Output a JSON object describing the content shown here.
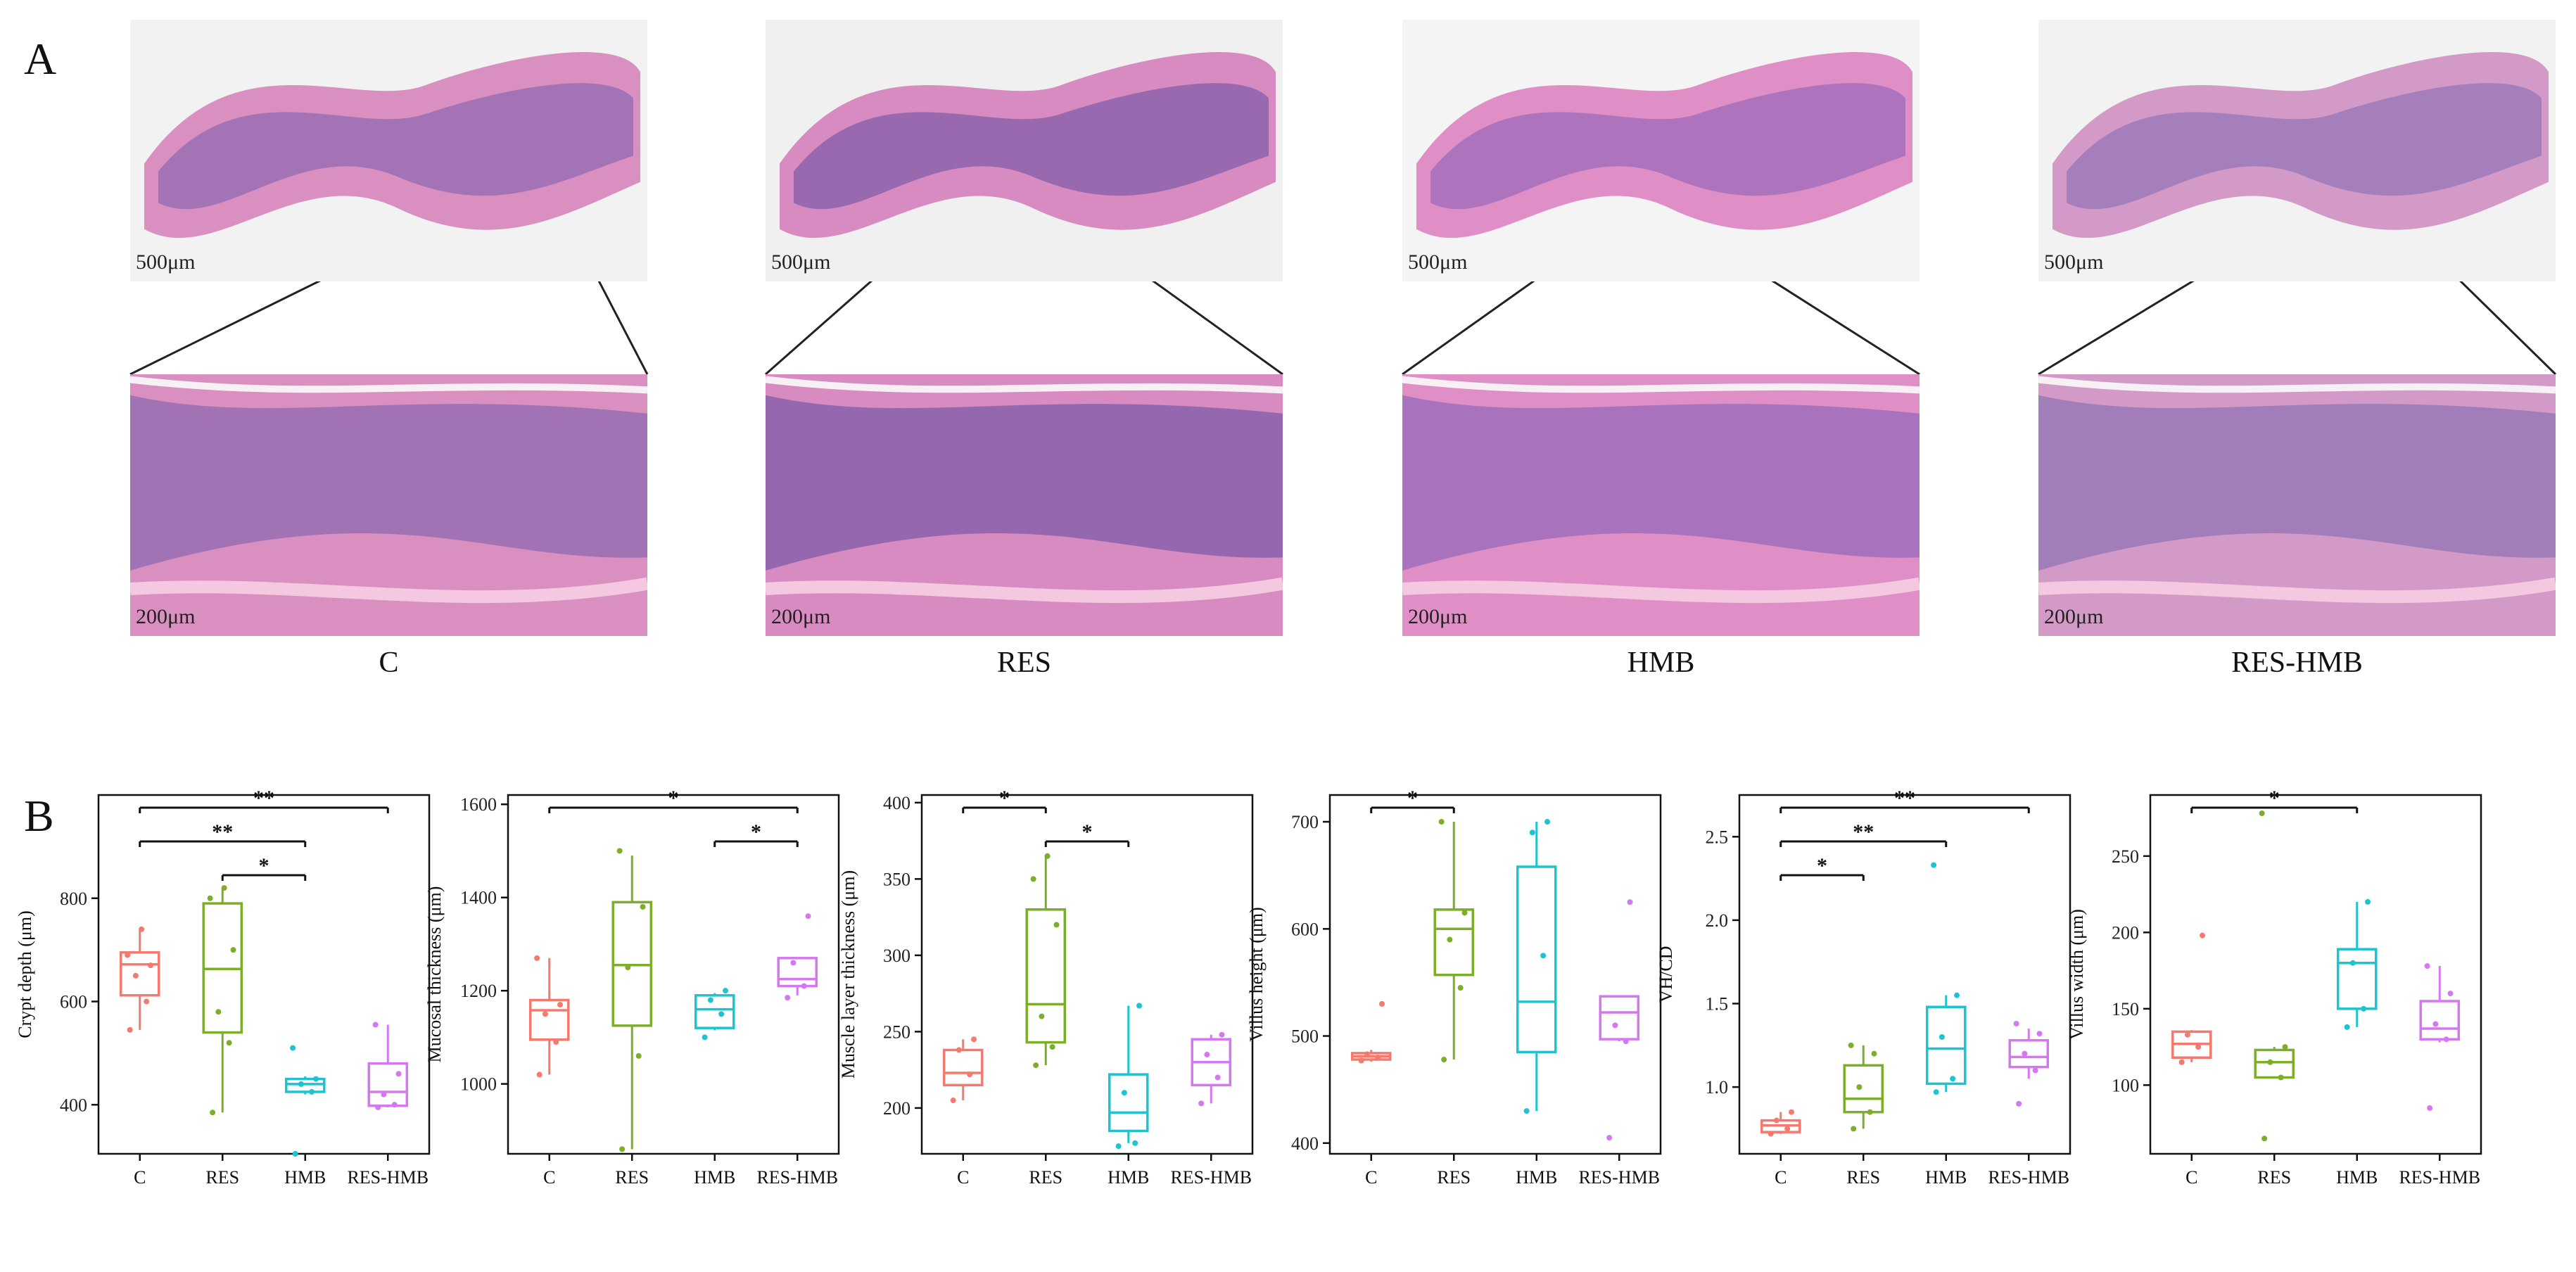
{
  "panel_a": {
    "label": "A",
    "overview_scale": "500μm",
    "zoom_scale": "200μm",
    "groups": [
      {
        "name": "C",
        "tissue": "#d98fc0",
        "lumen": "#f3f2f2",
        "mucosa": "#9a6fb3"
      },
      {
        "name": "RES",
        "tissue": "#d78bc0",
        "lumen": "#f1f0f0",
        "mucosa": "#8e63ad"
      },
      {
        "name": "HMB",
        "tissue": "#e08fc6",
        "lumen": "#f4f4f4",
        "mucosa": "#a36fba"
      },
      {
        "name": "RES-HMB",
        "tissue": "#d49ac7",
        "lumen": "#f2f2f2",
        "mucosa": "#9b7ab8"
      }
    ]
  },
  "panel_b": {
    "label": "B"
  },
  "chart_data": [
    {
      "type": "boxplot",
      "ylabel": "Crypt depth (μm)",
      "categories": [
        "C",
        "RES",
        "HMB",
        "RES-HMB"
      ],
      "yticks": [
        400,
        600,
        800
      ],
      "ylim": [
        305,
        1000
      ],
      "boxes": [
        {
          "group": "C",
          "min": 545,
          "q1": 612,
          "median": 672,
          "q3": 695,
          "max": 740,
          "points": [
            545,
            600,
            650,
            670,
            690,
            740
          ]
        },
        {
          "group": "RES",
          "min": 385,
          "q1": 540,
          "median": 663,
          "q3": 790,
          "max": 820,
          "points": [
            385,
            520,
            580,
            700,
            800,
            820
          ]
        },
        {
          "group": "HMB",
          "min": 420,
          "q1": 425,
          "median": 440,
          "q3": 450,
          "max": 455,
          "points": [
            305,
            425,
            440,
            450,
            510
          ]
        },
        {
          "group": "RES-HMB",
          "min": 395,
          "q1": 398,
          "median": 425,
          "q3": 480,
          "max": 555,
          "points": [
            395,
            400,
            420,
            460,
            555
          ]
        }
      ],
      "significance": [
        {
          "from": "C",
          "to": "RES-HMB",
          "label": "**"
        },
        {
          "from": "C",
          "to": "HMB",
          "label": "**"
        },
        {
          "from": "RES",
          "to": "HMB",
          "label": "*"
        }
      ],
      "color_map": {
        "C": "#f4796f",
        "RES": "#7cae2a",
        "HMB": "#1ec3cf",
        "RES-HMB": "#d677f2"
      }
    },
    {
      "type": "boxplot",
      "ylabel": "Mucosal thickness (μm)",
      "categories": [
        "C",
        "RES",
        "HMB",
        "RES-HMB"
      ],
      "yticks": [
        1000,
        1200,
        1400,
        1600
      ],
      "ylim": [
        850,
        1620
      ],
      "boxes": [
        {
          "group": "C",
          "min": 1020,
          "q1": 1095,
          "median": 1158,
          "q3": 1180,
          "max": 1270,
          "points": [
            1020,
            1090,
            1150,
            1170,
            1270
          ]
        },
        {
          "group": "RES",
          "min": 860,
          "q1": 1125,
          "median": 1255,
          "q3": 1390,
          "max": 1490,
          "points": [
            860,
            1060,
            1250,
            1380,
            1500
          ]
        },
        {
          "group": "HMB",
          "min": 1115,
          "q1": 1120,
          "median": 1160,
          "q3": 1190,
          "max": 1195,
          "points": [
            1100,
            1150,
            1180,
            1200
          ]
        },
        {
          "group": "RES-HMB",
          "min": 1190,
          "q1": 1210,
          "median": 1225,
          "q3": 1270,
          "max": 1270,
          "points": [
            1185,
            1210,
            1260,
            1360
          ]
        }
      ],
      "significance": [
        {
          "from": "C",
          "to": "RES-HMB",
          "label": "*"
        },
        {
          "from": "HMB",
          "to": "RES-HMB",
          "label": "*"
        }
      ],
      "color_map": {
        "C": "#f4796f",
        "RES": "#7cae2a",
        "HMB": "#1ec3cf",
        "RES-HMB": "#d677f2"
      }
    },
    {
      "type": "boxplot",
      "ylabel": "Muscle layer thickness (μm)",
      "categories": [
        "C",
        "RES",
        "HMB",
        "RES-HMB"
      ],
      "yticks": [
        200,
        250,
        300,
        350,
        400
      ],
      "ylim": [
        170,
        405
      ],
      "boxes": [
        {
          "group": "C",
          "min": 205,
          "q1": 215,
          "median": 223,
          "q3": 238,
          "max": 245,
          "points": [
            205,
            222,
            238,
            245
          ]
        },
        {
          "group": "RES",
          "min": 228,
          "q1": 243,
          "median": 268,
          "q3": 330,
          "max": 365,
          "points": [
            228,
            240,
            260,
            320,
            350,
            365
          ]
        },
        {
          "group": "HMB",
          "min": 177,
          "q1": 185,
          "median": 197,
          "q3": 222,
          "max": 267,
          "points": [
            175,
            177,
            210,
            267
          ]
        },
        {
          "group": "RES-HMB",
          "min": 203,
          "q1": 215,
          "median": 230,
          "q3": 245,
          "max": 248,
          "points": [
            203,
            220,
            235,
            248
          ]
        }
      ],
      "significance": [
        {
          "from": "C",
          "to": "RES",
          "label": "*"
        },
        {
          "from": "RES",
          "to": "HMB",
          "label": "*"
        }
      ],
      "color_map": {
        "C": "#f4796f",
        "RES": "#7cae2a",
        "HMB": "#1ec3cf",
        "RES-HMB": "#d677f2"
      }
    },
    {
      "type": "boxplot",
      "ylabel": "Villus height (μm)",
      "categories": [
        "C",
        "RES",
        "HMB",
        "RES-HMB"
      ],
      "yticks": [
        400,
        500,
        600,
        700
      ],
      "ylim": [
        390,
        725
      ],
      "boxes": [
        {
          "group": "C",
          "min": 476,
          "q1": 478,
          "median": 481,
          "q3": 484,
          "max": 487,
          "points": [
            477,
            480,
            483,
            530
          ]
        },
        {
          "group": "RES",
          "min": 478,
          "q1": 557,
          "median": 600,
          "q3": 618,
          "max": 700,
          "points": [
            478,
            545,
            590,
            615,
            700
          ]
        },
        {
          "group": "HMB",
          "min": 430,
          "q1": 485,
          "median": 532,
          "q3": 658,
          "max": 700,
          "points": [
            430,
            575,
            690,
            700
          ]
        },
        {
          "group": "RES-HMB",
          "min": 495,
          "q1": 497,
          "median": 522,
          "q3": 537,
          "max": 537,
          "points": [
            405,
            495,
            510,
            625
          ]
        }
      ],
      "significance": [
        {
          "from": "C",
          "to": "RES",
          "label": "*"
        }
      ],
      "color_map": {
        "C": "#f4796f",
        "RES": "#7cae2a",
        "HMB": "#1ec3cf",
        "RES-HMB": "#d677f2"
      }
    },
    {
      "type": "boxplot",
      "ylabel": "VH/CD",
      "categories": [
        "C",
        "RES",
        "HMB",
        "RES-HMB"
      ],
      "yticks": [
        1.0,
        1.5,
        2.0,
        2.5
      ],
      "ylim": [
        0.6,
        2.75
      ],
      "boxes": [
        {
          "group": "C",
          "min": 0.72,
          "q1": 0.73,
          "median": 0.77,
          "q3": 0.8,
          "max": 0.85,
          "points": [
            0.72,
            0.75,
            0.8,
            0.85
          ]
        },
        {
          "group": "RES",
          "min": 0.75,
          "q1": 0.85,
          "median": 0.93,
          "q3": 1.13,
          "max": 1.25,
          "points": [
            0.75,
            0.85,
            1.0,
            1.2,
            1.25
          ]
        },
        {
          "group": "HMB",
          "min": 0.97,
          "q1": 1.02,
          "median": 1.23,
          "q3": 1.48,
          "max": 1.55,
          "points": [
            0.97,
            1.05,
            1.3,
            1.55,
            2.33
          ]
        },
        {
          "group": "RES-HMB",
          "min": 1.05,
          "q1": 1.12,
          "median": 1.18,
          "q3": 1.28,
          "max": 1.35,
          "points": [
            0.9,
            1.1,
            1.2,
            1.32,
            1.38
          ]
        }
      ],
      "significance": [
        {
          "from": "C",
          "to": "RES-HMB",
          "label": "**"
        },
        {
          "from": "C",
          "to": "HMB",
          "label": "**"
        },
        {
          "from": "C",
          "to": "RES",
          "label": "*"
        }
      ],
      "color_map": {
        "C": "#f4796f",
        "RES": "#7cae2a",
        "HMB": "#1ec3cf",
        "RES-HMB": "#d677f2"
      }
    },
    {
      "type": "boxplot",
      "ylabel": "Villus width (μm)",
      "categories": [
        "C",
        "RES",
        "HMB",
        "RES-HMB"
      ],
      "yticks": [
        100,
        150,
        200,
        250
      ],
      "ylim": [
        55,
        290
      ],
      "boxes": [
        {
          "group": "C",
          "min": 115,
          "q1": 118,
          "median": 127,
          "q3": 135,
          "max": 136,
          "points": [
            115,
            125,
            133,
            198
          ]
        },
        {
          "group": "RES",
          "min": 105,
          "q1": 105,
          "median": 115,
          "q3": 123,
          "max": 125,
          "points": [
            65,
            105,
            115,
            125,
            278
          ]
        },
        {
          "group": "HMB",
          "min": 138,
          "q1": 150,
          "median": 180,
          "q3": 189,
          "max": 220,
          "points": [
            138,
            150,
            180,
            220
          ]
        },
        {
          "group": "RES-HMB",
          "min": 128,
          "q1": 130,
          "median": 137,
          "q3": 155,
          "max": 178,
          "points": [
            85,
            130,
            140,
            160,
            178
          ]
        }
      ],
      "significance": [
        {
          "from": "C",
          "to": "HMB",
          "label": "*"
        }
      ],
      "color_map": {
        "C": "#f4796f",
        "RES": "#7cae2a",
        "HMB": "#1ec3cf",
        "RES-HMB": "#d677f2"
      }
    }
  ]
}
